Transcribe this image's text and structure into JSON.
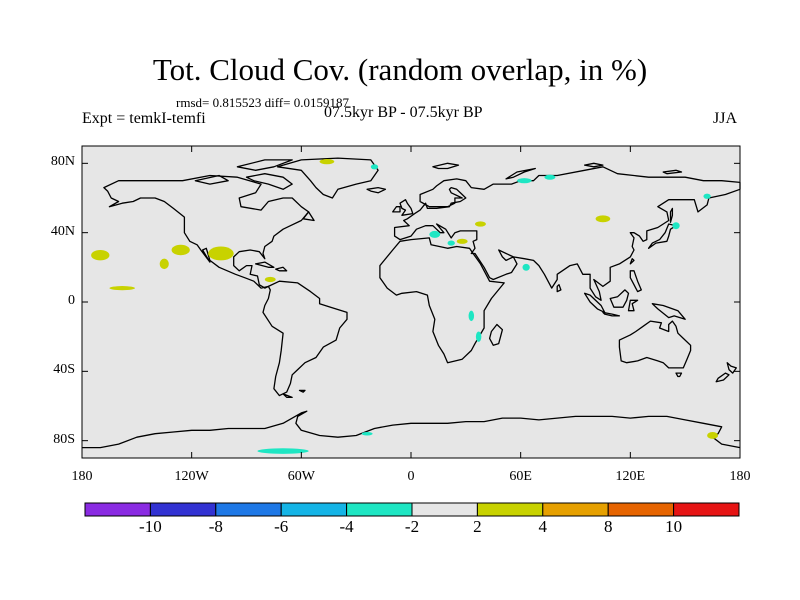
{
  "title": "Tot. Cloud Cov. (random overlap, in %)",
  "stats": "rmsd= 0.815523  diff= 0.0159187",
  "experiment": "Expt = temkI-temfi",
  "period": "07.5kyr BP - 07.5kyr BP",
  "season": "JJA",
  "map": {
    "lon_range": [
      -180,
      180
    ],
    "lat_range": [
      -90,
      90
    ],
    "ocean_color": "#e6e6e6",
    "coast_color": "#000000",
    "lat_ticks": [
      {
        "value": 80,
        "label": "80N"
      },
      {
        "value": 40,
        "label": "40N"
      },
      {
        "value": 0,
        "label": "0"
      },
      {
        "value": -40,
        "label": "40S"
      },
      {
        "value": -80,
        "label": "80S"
      }
    ],
    "lon_ticks": [
      {
        "value": -180,
        "label": "180"
      },
      {
        "value": -120,
        "label": "120W"
      },
      {
        "value": -60,
        "label": "60W"
      },
      {
        "value": 0,
        "label": "0"
      },
      {
        "value": 60,
        "label": "60E"
      },
      {
        "value": 120,
        "label": "120E"
      },
      {
        "value": 180,
        "label": "180"
      }
    ],
    "anomaly_patches": [
      {
        "name": "patch-n-pacific-hawaii",
        "lon": -170,
        "lat": 27,
        "rlon": 5,
        "rlat": 3,
        "class": "2 to 4"
      },
      {
        "name": "patch-e-pacific-1",
        "lon": -126,
        "lat": 30,
        "rlon": 5,
        "rlat": 3,
        "class": "2 to 4"
      },
      {
        "name": "patch-e-pacific-2",
        "lon": -135,
        "lat": 22,
        "rlon": 2.5,
        "rlat": 3,
        "class": "2 to 4"
      },
      {
        "name": "patch-n-america",
        "lon": -104,
        "lat": 28,
        "rlon": 7,
        "rlat": 4,
        "class": "2 to 4"
      },
      {
        "name": "patch-tropical-pacific",
        "lon": -158,
        "lat": 8,
        "rlon": 7,
        "rlat": 1.2,
        "class": "2 to 4"
      },
      {
        "name": "patch-caribbean",
        "lon": -77,
        "lat": 13,
        "rlon": 3,
        "rlat": 1.5,
        "class": "2 to 4"
      },
      {
        "name": "patch-greenland-n",
        "lon": -46,
        "lat": 81,
        "rlon": 4,
        "rlat": 1.5,
        "class": "2 to 4"
      },
      {
        "name": "patch-siberia",
        "lon": 105,
        "lat": 48,
        "rlon": 4,
        "rlat": 2,
        "class": "2 to 4"
      },
      {
        "name": "patch-black-sea",
        "lon": 38,
        "lat": 45,
        "rlon": 3,
        "rlat": 1.5,
        "class": "2 to 4"
      },
      {
        "name": "patch-mediterranean-e",
        "lon": 28,
        "lat": 35,
        "rlon": 3,
        "rlat": 1.5,
        "class": "2 to 4"
      },
      {
        "name": "patch-ross-sea",
        "lon": 165,
        "lat": -77,
        "rlon": 3,
        "rlat": 2,
        "class": "2 to 4"
      },
      {
        "name": "patch-weddell-sea",
        "lon": -70,
        "lat": -86,
        "rlon": 14,
        "rlat": 1.6,
        "class": "-4 to -2"
      },
      {
        "name": "patch-antarctic-coast",
        "lon": -24,
        "lat": -76,
        "rlon": 3,
        "rlat": 1,
        "class": "-4 to -2"
      },
      {
        "name": "patch-kara-sea",
        "lon": 62,
        "lat": 70,
        "rlon": 4,
        "rlat": 1.5,
        "class": "-4 to -2"
      },
      {
        "name": "patch-laptev-sea",
        "lon": 76,
        "lat": 72,
        "rlon": 3,
        "rlat": 1.5,
        "class": "-4 to -2"
      },
      {
        "name": "patch-mediterranean-w",
        "lon": 13,
        "lat": 39,
        "rlon": 3,
        "rlat": 2,
        "class": "-4 to -2"
      },
      {
        "name": "patch-mediterranean-c",
        "lon": 22,
        "lat": 34,
        "rlon": 2,
        "rlat": 1.5,
        "class": "-4 to -2"
      },
      {
        "name": "patch-arabian-sea",
        "lon": 63,
        "lat": 20,
        "rlon": 2,
        "rlat": 2,
        "class": "-4 to -2"
      },
      {
        "name": "patch-africa-e",
        "lon": 33,
        "lat": -8,
        "rlon": 1.5,
        "rlat": 3,
        "class": "-4 to -2"
      },
      {
        "name": "patch-mozambique",
        "lon": 37,
        "lat": -20,
        "rlon": 1.5,
        "rlat": 3,
        "class": "-4 to -2"
      },
      {
        "name": "patch-japan",
        "lon": 145,
        "lat": 44,
        "rlon": 2,
        "rlat": 2,
        "class": "-4 to -2"
      },
      {
        "name": "patch-kamchatka",
        "lon": 162,
        "lat": 61,
        "rlon": 2,
        "rlat": 1.5,
        "class": "-4 to -2"
      },
      {
        "name": "patch-greenland-coast",
        "lon": -20,
        "lat": 78,
        "rlon": 2,
        "rlat": 1.5,
        "class": "-4 to -2"
      }
    ]
  },
  "colorbar": {
    "colors": [
      "#8a2be2",
      "#3232d2",
      "#1e78e6",
      "#14b4e6",
      "#1ee6c3",
      "#e6e6e6",
      "#c8d200",
      "#e6a000",
      "#e66400",
      "#e61414"
    ],
    "labels": [
      "-10",
      "-8",
      "-6",
      "-4",
      "-2",
      "2",
      "4",
      "8",
      "10"
    ]
  }
}
